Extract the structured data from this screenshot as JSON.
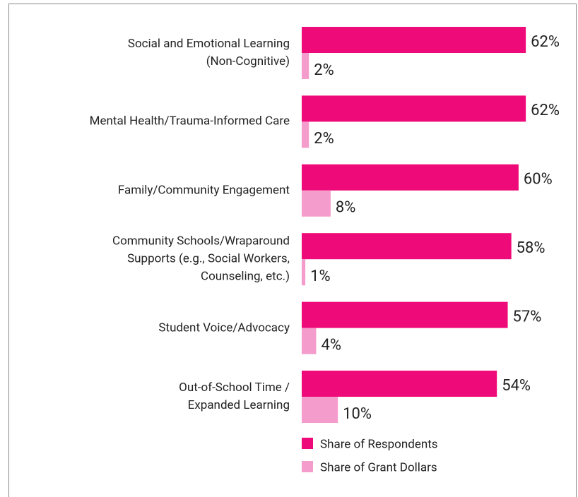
{
  "chart_data": {
    "type": "bar",
    "orientation": "horizontal",
    "categories": [
      "Social and Emotional Learning\n(Non-Cognitive)",
      "Mental Health/Trauma-Informed Care",
      "Family/Community Engagement",
      "Community Schools/Wraparound\nSupports (e.g., Social Workers,\nCounseling, etc.)",
      "Student Voice/Advocacy",
      "Out-of-School Time /\nExpanded Learning"
    ],
    "series": [
      {
        "name": "Share of Respondents",
        "color": "#ee0a78",
        "values": [
          62,
          62,
          60,
          58,
          57,
          54
        ],
        "value_labels": [
          "62%",
          "62%",
          "60%",
          "58%",
          "57%",
          "54%"
        ]
      },
      {
        "name": "Share of Grant Dollars",
        "color": "#f49ccb",
        "values": [
          2,
          2,
          8,
          1,
          4,
          10
        ],
        "value_labels": [
          "2%",
          "2%",
          "8%",
          "1%",
          "4%",
          "10%"
        ]
      }
    ]
  }
}
